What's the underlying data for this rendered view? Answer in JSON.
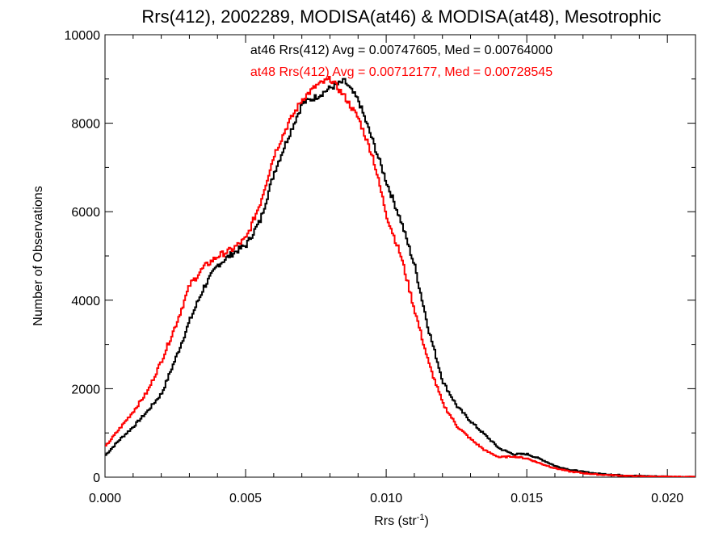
{
  "chart_data": {
    "type": "line",
    "title": "Rrs(412), 2002289, MODISA(at46) & MODISA(at48), Mesotrophic",
    "xlabel": {
      "base": "Rrs (str",
      "sup": "-1",
      "tail": ")"
    },
    "ylabel": "Number of Observations",
    "xlim": [
      0.0,
      0.021
    ],
    "ylim": [
      0,
      10000
    ],
    "grid": false,
    "step": true,
    "x_ticks": [
      0.0,
      0.005,
      0.01,
      0.015,
      0.02
    ],
    "x_tick_labels": [
      "0.000",
      "0.005",
      "0.010",
      "0.015",
      "0.020"
    ],
    "y_ticks": [
      0,
      2000,
      4000,
      6000,
      8000,
      10000
    ],
    "y_tick_labels": [
      "0",
      "2000",
      "4000",
      "6000",
      "8000",
      "10000"
    ],
    "annotations": [
      {
        "text": "at46 Rrs(412) Avg = 0.00747605, Med = 0.00764000",
        "color": "#000000"
      },
      {
        "text": "at48 Rrs(412) Avg = 0.00712177, Med = 0.00728545",
        "color": "#ff0000"
      }
    ],
    "series": [
      {
        "color": "#000000",
        "x": [
          0.0,
          0.0005,
          0.001,
          0.0015,
          0.002,
          0.0025,
          0.003,
          0.0035,
          0.004,
          0.0045,
          0.005,
          0.0055,
          0.006,
          0.0065,
          0.007,
          0.0075,
          0.008,
          0.0085,
          0.009,
          0.0095,
          0.01,
          0.0105,
          0.011,
          0.0115,
          0.012,
          0.0125,
          0.013,
          0.0135,
          0.014,
          0.0145,
          0.015,
          0.0155,
          0.016,
          0.0165,
          0.017,
          0.0175,
          0.018,
          0.0185,
          0.019,
          0.0195,
          0.02,
          0.0205,
          0.021
        ],
        "y": [
          500,
          850,
          1150,
          1500,
          1900,
          2700,
          3550,
          4300,
          4800,
          5050,
          5250,
          5800,
          6900,
          7700,
          8450,
          8600,
          8800,
          8950,
          8500,
          7600,
          6650,
          5800,
          4750,
          3300,
          2150,
          1600,
          1250,
          950,
          650,
          520,
          520,
          400,
          250,
          170,
          120,
          80,
          60,
          40,
          30,
          20,
          15,
          10,
          5
        ]
      },
      {
        "color": "#ff0000",
        "x": [
          0.0,
          0.0005,
          0.001,
          0.0015,
          0.002,
          0.0025,
          0.003,
          0.0035,
          0.004,
          0.0045,
          0.005,
          0.0055,
          0.006,
          0.0065,
          0.007,
          0.0075,
          0.008,
          0.0085,
          0.009,
          0.0095,
          0.01,
          0.0105,
          0.011,
          0.0115,
          0.012,
          0.0125,
          0.013,
          0.0135,
          0.014,
          0.0145,
          0.015,
          0.0155,
          0.016,
          0.0165,
          0.017,
          0.0175,
          0.018,
          0.0185,
          0.019,
          0.0195,
          0.02,
          0.0205,
          0.021
        ],
        "y": [
          700,
          1100,
          1500,
          1950,
          2650,
          3450,
          4350,
          4750,
          5000,
          5150,
          5400,
          6200,
          7300,
          8000,
          8550,
          8850,
          9000,
          8600,
          8100,
          7250,
          5900,
          5000,
          3750,
          2550,
          1650,
          1150,
          850,
          600,
          450,
          470,
          420,
          300,
          200,
          130,
          90,
          60,
          45,
          30,
          20,
          15,
          10,
          8,
          5
        ]
      }
    ]
  }
}
